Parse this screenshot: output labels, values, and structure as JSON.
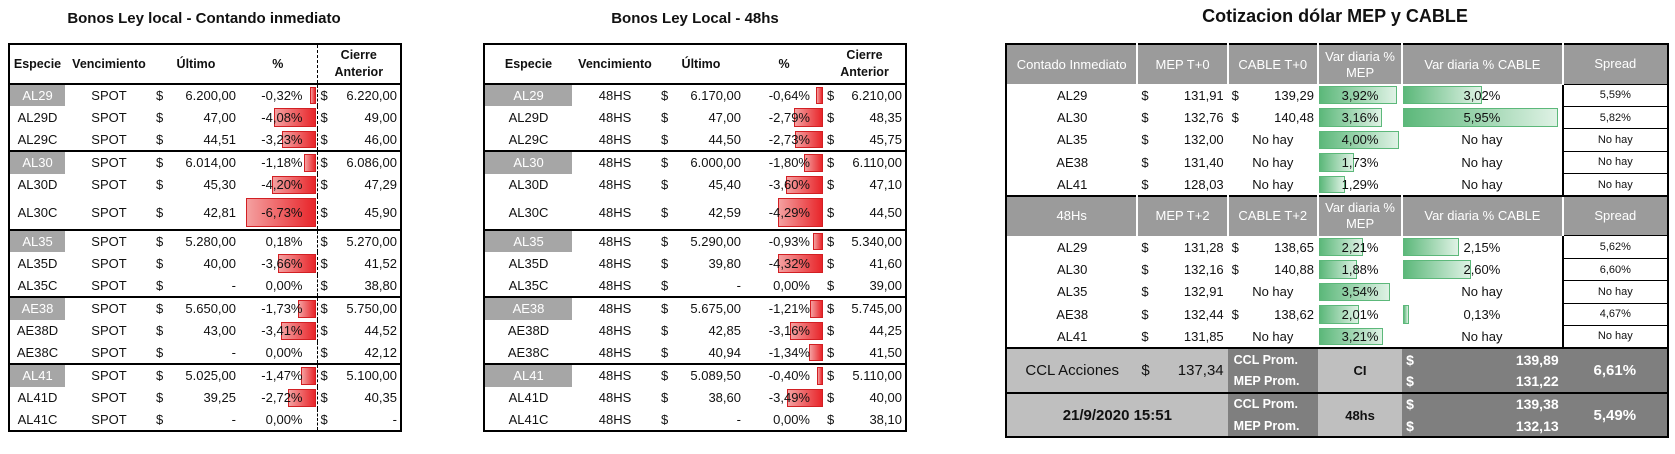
{
  "titles": {
    "left": "Bonos Ley local - Contando inmediato",
    "middle": "Bonos Ley Local - 48hs",
    "right": "Cotizacion dólar MEP y CABLE"
  },
  "bond_headers": {
    "especie": "Especie",
    "vencimiento": "Vencimiento",
    "ultimo": "Último",
    "pct": "%",
    "cierre_l1": "Cierre",
    "cierre_l2": "Anterior"
  },
  "currency": "$",
  "left_rows": [
    {
      "especie": "AL29",
      "venc": "SPOT",
      "ultimo": "6.200,00",
      "pct": "-0,32%",
      "pct_val": -0.32,
      "cierre": "6.220,00",
      "hl": true
    },
    {
      "especie": "AL29D",
      "venc": "SPOT",
      "ultimo": "47,00",
      "pct": "-4,08%",
      "pct_val": -4.08,
      "cierre": "49,00"
    },
    {
      "especie": "AL29C",
      "venc": "SPOT",
      "ultimo": "44,51",
      "pct": "-3,23%",
      "pct_val": -3.23,
      "cierre": "46,00"
    },
    {
      "especie": "AL30",
      "venc": "SPOT",
      "ultimo": "6.014,00",
      "pct": "-1,18%",
      "pct_val": -1.18,
      "cierre": "6.086,00",
      "hl": true
    },
    {
      "especie": "AL30D",
      "venc": "SPOT",
      "ultimo": "45,30",
      "pct": "-4,20%",
      "pct_val": -4.2,
      "cierre": "47,29"
    },
    {
      "especie": "AL30C",
      "venc": "SPOT",
      "ultimo": "42,81",
      "pct": "-6,73%",
      "pct_val": -6.73,
      "cierre": "45,90",
      "tall": true
    },
    {
      "especie": "AL35",
      "venc": "SPOT",
      "ultimo": "5.280,00",
      "pct": "0,18%",
      "pct_val": 0.18,
      "cierre": "5.270,00",
      "hl": true
    },
    {
      "especie": "AL35D",
      "venc": "SPOT",
      "ultimo": "40,00",
      "pct": "-3,66%",
      "pct_val": -3.66,
      "cierre": "41,52"
    },
    {
      "especie": "AL35C",
      "venc": "SPOT",
      "ultimo": "-",
      "pct": "0,00%",
      "pct_val": 0,
      "cierre": "38,80"
    },
    {
      "especie": "AE38",
      "venc": "SPOT",
      "ultimo": "5.650,00",
      "pct": "-1,73%",
      "pct_val": -1.73,
      "cierre": "5.750,00",
      "hl": true
    },
    {
      "especie": "AE38D",
      "venc": "SPOT",
      "ultimo": "43,00",
      "pct": "-3,41%",
      "pct_val": -3.41,
      "cierre": "44,52"
    },
    {
      "especie": "AE38C",
      "venc": "SPOT",
      "ultimo": "-",
      "pct": "0,00%",
      "pct_val": 0,
      "cierre": "42,12"
    },
    {
      "especie": "AL41",
      "venc": "SPOT",
      "ultimo": "5.025,00",
      "pct": "-1,47%",
      "pct_val": -1.47,
      "cierre": "5.100,00",
      "hl": true
    },
    {
      "especie": "AL41D",
      "venc": "SPOT",
      "ultimo": "39,25",
      "pct": "-2,72%",
      "pct_val": -2.72,
      "cierre": "40,35"
    },
    {
      "especie": "AL41C",
      "venc": "SPOT",
      "ultimo": "-",
      "pct": "0,00%",
      "pct_val": 0,
      "cierre": "-"
    }
  ],
  "mid_rows": [
    {
      "especie": "AL29",
      "venc": "48HS",
      "ultimo": "6.170,00",
      "pct": "-0,64%",
      "pct_val": -0.64,
      "cierre": "6.210,00",
      "hl": true
    },
    {
      "especie": "AL29D",
      "venc": "48HS",
      "ultimo": "47,00",
      "pct": "-2,79%",
      "pct_val": -2.79,
      "cierre": "48,35"
    },
    {
      "especie": "AL29C",
      "venc": "48HS",
      "ultimo": "44,50",
      "pct": "-2,73%",
      "pct_val": -2.73,
      "cierre": "45,75"
    },
    {
      "especie": "AL30",
      "venc": "48HS",
      "ultimo": "6.000,00",
      "pct": "-1,80%",
      "pct_val": -1.8,
      "cierre": "6.110,00",
      "hl": true
    },
    {
      "especie": "AL30D",
      "venc": "48HS",
      "ultimo": "45,40",
      "pct": "-3,60%",
      "pct_val": -3.6,
      "cierre": "47,10"
    },
    {
      "especie": "AL30C",
      "venc": "48HS",
      "ultimo": "42,59",
      "pct": "-4,29%",
      "pct_val": -4.29,
      "cierre": "44,50",
      "tall": true
    },
    {
      "especie": "AL35",
      "venc": "48HS",
      "ultimo": "5.290,00",
      "pct": "-0,93%",
      "pct_val": -0.93,
      "cierre": "5.340,00",
      "hl": true
    },
    {
      "especie": "AL35D",
      "venc": "48HS",
      "ultimo": "39,80",
      "pct": "-4,32%",
      "pct_val": -4.32,
      "cierre": "41,60"
    },
    {
      "especie": "AL35C",
      "venc": "48HS",
      "ultimo": "-",
      "pct": "0,00%",
      "pct_val": 0,
      "cierre": "39,00"
    },
    {
      "especie": "AE38",
      "venc": "48HS",
      "ultimo": "5.675,00",
      "pct": "-1,21%",
      "pct_val": -1.21,
      "cierre": "5.745,00",
      "hl": true
    },
    {
      "especie": "AE38D",
      "venc": "48HS",
      "ultimo": "42,85",
      "pct": "-3,16%",
      "pct_val": -3.16,
      "cierre": "44,25"
    },
    {
      "especie": "AE38C",
      "venc": "48HS",
      "ultimo": "40,94",
      "pct": "-1,34%",
      "pct_val": -1.34,
      "cierre": "41,50"
    },
    {
      "especie": "AL41",
      "venc": "48HS",
      "ultimo": "5.089,50",
      "pct": "-0,40%",
      "pct_val": -0.4,
      "cierre": "5.110,00",
      "hl": true
    },
    {
      "especie": "AL41D",
      "venc": "48HS",
      "ultimo": "38,60",
      "pct": "-3,49%",
      "pct_val": -3.49,
      "cierre": "40,00"
    },
    {
      "especie": "AL41C",
      "venc": "48HS",
      "ultimo": "-",
      "pct": "0,00%",
      "pct_val": 0,
      "cierre": "38,10"
    }
  ],
  "mep_ci": {
    "headers": [
      "Contado Inmediato",
      "MEP  T+0",
      "CABLE T+0",
      "Var diaria % MEP",
      "Var diaria % CABLE",
      "Spread"
    ],
    "rows": [
      {
        "bono": "AL29",
        "mep": "131,91",
        "cable": "139,29",
        "var_mep": "3,92%",
        "var_mep_val": 3.92,
        "var_cable": "3,02%",
        "var_cable_val": 3.02,
        "spread": "5,59%"
      },
      {
        "bono": "AL30",
        "mep": "132,76",
        "cable": "140,48",
        "var_mep": "3,16%",
        "var_mep_val": 3.16,
        "var_cable": "5,95%",
        "var_cable_val": 5.95,
        "spread": "5,82%"
      },
      {
        "bono": "AL35",
        "mep": "132,00",
        "cable": "No hay",
        "var_mep": "4,00%",
        "var_mep_val": 4.0,
        "var_cable": "No hay",
        "var_cable_val": 0,
        "spread": "No hay"
      },
      {
        "bono": "AE38",
        "mep": "131,40",
        "cable": "No hay",
        "var_mep": "1,73%",
        "var_mep_val": 1.73,
        "var_cable": "No hay",
        "var_cable_val": 0,
        "spread": "No hay"
      },
      {
        "bono": "AL41",
        "mep": "128,03",
        "cable": "No hay",
        "var_mep": "1,29%",
        "var_mep_val": 1.29,
        "var_cable": "No hay",
        "var_cable_val": 0,
        "spread": "No hay"
      }
    ]
  },
  "mep_48": {
    "headers": [
      "48Hs",
      "MEP T+2",
      "CABLE T+2",
      "Var diaria % MEP",
      "Var diaria % CABLE",
      "Spread"
    ],
    "rows": [
      {
        "bono": "AL29",
        "mep": "131,28",
        "cable": "138,65",
        "var_mep": "2,21%",
        "var_mep_val": 2.21,
        "var_cable": "2,15%",
        "var_cable_val": 2.15,
        "spread": "5,62%"
      },
      {
        "bono": "AL30",
        "mep": "132,16",
        "cable": "140,88",
        "var_mep": "1,88%",
        "var_mep_val": 1.88,
        "var_cable": "2,60%",
        "var_cable_val": 2.6,
        "spread": "6,60%"
      },
      {
        "bono": "AL35",
        "mep": "132,91",
        "cable": "No hay",
        "var_mep": "3,54%",
        "var_mep_val": 3.54,
        "var_cable": "No hay",
        "var_cable_val": 0,
        "spread": "No hay"
      },
      {
        "bono": "AE38",
        "mep": "132,44",
        "cable": "138,62",
        "var_mep": "2,01%",
        "var_mep_val": 2.01,
        "var_cable": "0,13%",
        "var_cable_val": 0.13,
        "spread": "4,67%"
      },
      {
        "bono": "AL41",
        "mep": "131,85",
        "cable": "No hay",
        "var_mep": "3,21%",
        "var_mep_val": 3.21,
        "var_cable": "No hay",
        "var_cable_val": 0,
        "spread": "No hay"
      }
    ]
  },
  "summary": {
    "ccl_acciones_label": "CCL Acciones",
    "ccl_acciones_value": "137,34",
    "date": "21/9/2020 15:51",
    "ccl_prom": "CCL Prom.",
    "mep_prom": "MEP Prom.",
    "ci_label": "CI",
    "hs48_label": "48hs",
    "ci_ccl": "139,89",
    "ci_mep": "131,22",
    "ci_spread": "6,61%",
    "hs48_ccl": "139,38",
    "hs48_mep": "132,13",
    "hs48_spread": "5,49%"
  }
}
